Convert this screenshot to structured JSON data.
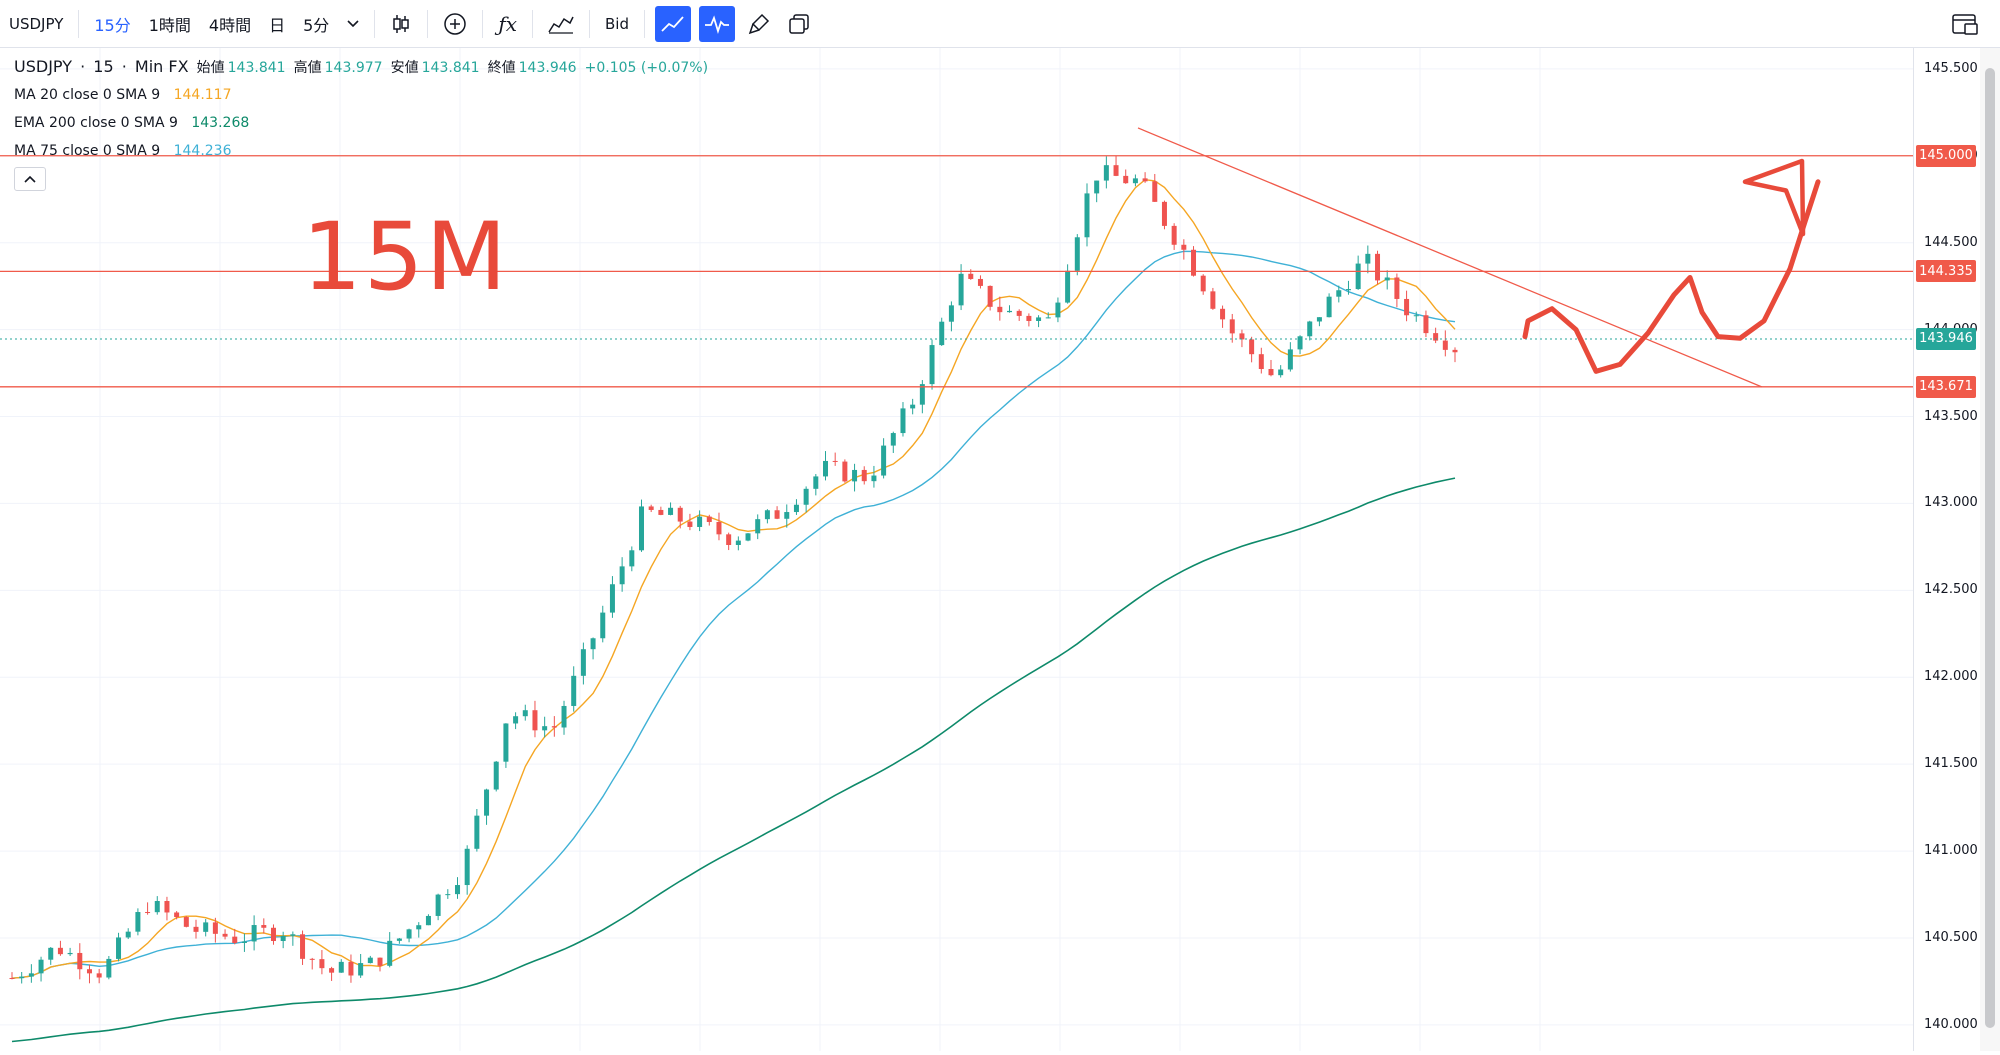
{
  "toolbar": {
    "symbol": "USDJPY",
    "interval_15m": "15分",
    "interval_1h": "1時間",
    "interval_4h": "4時間",
    "interval_day": "日",
    "interval_5m": "5分",
    "bid_label": "Bid"
  },
  "legend": {
    "symbol": "USDJPY",
    "interval": "15",
    "source": "Min FX",
    "open_label": "始値",
    "open_value": "143.841",
    "high_label": "高値",
    "high_value": "143.977",
    "low_label": "安値",
    "low_value": "143.841",
    "close_label": "終値",
    "close_value": "143.946",
    "change": "+0.105 (+0.07%)",
    "indicators": [
      {
        "name": "MA 20 close 0 SMA 9",
        "value": "144.117",
        "color": "#f5a623"
      },
      {
        "name": "EMA 200 close 0 SMA 9",
        "value": "143.268",
        "color": "#0e8a6a"
      },
      {
        "name": "MA 75 close 0 SMA 9",
        "value": "144.236",
        "color": "#3fb1d6"
      }
    ]
  },
  "annotation": "15M",
  "price_axis": {
    "ticks": [
      "145.500",
      "145.000",
      "144.500",
      "144.000",
      "143.500",
      "143.000",
      "142.500",
      "142.000",
      "141.500",
      "141.000",
      "140.500",
      "140.000"
    ],
    "tags": [
      {
        "label": "145.000",
        "price": 145.0,
        "color": "#f05a4a"
      },
      {
        "label": "144.335",
        "price": 144.335,
        "color": "#f05a4a"
      },
      {
        "label": "143.946",
        "price": 143.946,
        "color": "#26a69a"
      },
      {
        "label": "143.671",
        "price": 143.671,
        "color": "#f05a4a"
      }
    ]
  },
  "chart_data": {
    "type": "candlestick",
    "symbol": "USDJPY",
    "timeframe": "15",
    "ylim": [
      139.85,
      145.62
    ],
    "horizontal_lines": [
      145.0,
      144.335,
      143.671
    ],
    "trendline": {
      "start": 145.16,
      "end": 143.67
    },
    "path_anchors": [
      140.27,
      140.45,
      140.3,
      140.7,
      140.55,
      140.5,
      140.55,
      140.3,
      140.35,
      140.6,
      140.9,
      141.8,
      141.7,
      142.3,
      142.95,
      142.9,
      142.8,
      142.95,
      143.2,
      143.15,
      143.6,
      144.3,
      144.1,
      144.05,
      144.9,
      144.85,
      144.45,
      144.0,
      143.72,
      144.1,
      144.4,
      144.1,
      143.9
    ]
  },
  "colors": {
    "bull": "#26a69a",
    "bear": "#ef5350",
    "level": "#f05a4a",
    "ma20": "#f5a623",
    "ma75": "#3fb1d6",
    "ema200": "#0e8a6a",
    "annotation": "#e84a3a"
  }
}
